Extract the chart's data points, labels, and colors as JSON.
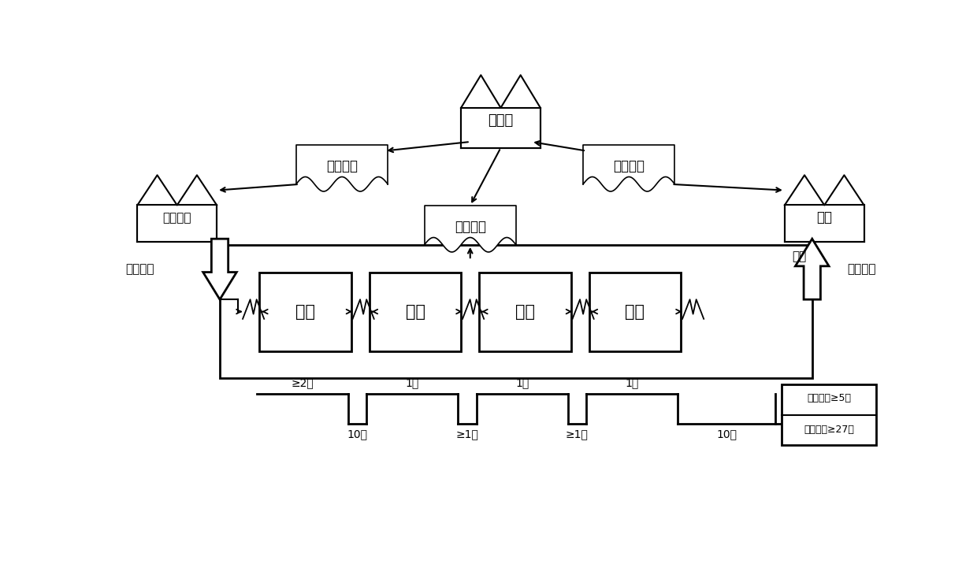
{
  "bg_color": "#ffffff",
  "fig_width": 12.4,
  "fig_height": 7.3,
  "dpi": 100,
  "nodes": {
    "jihua_zu": {
      "label": "计划组"
    },
    "lingliao": {
      "label": "领料计划"
    },
    "wuliu_top": {
      "label": "物流中心"
    },
    "shengchan": {
      "label": "生产计划"
    },
    "wuliu_left": {
      "label": "物流中心"
    },
    "customer": {
      "label": "客户"
    },
    "biaotie": {
      "label": "表贴"
    },
    "dianzhuang": {
      "label": "电装"
    },
    "jianyan": {
      "label": "检验"
    },
    "tiaoshi": {
      "label": "调试"
    }
  },
  "timeline_labels_top": [
    "≥2天",
    "1天",
    "1天",
    "1天"
  ],
  "timeline_labels_bottom": [
    "10天",
    "≥1天",
    "≥1天",
    "10天"
  ],
  "summary_lines": [
    "加工时间≥5天",
    "加工时间≥27天"
  ],
  "liangjian_left": "两周一次",
  "liangjian_right": "两周一次",
  "workshop_label": "车间"
}
